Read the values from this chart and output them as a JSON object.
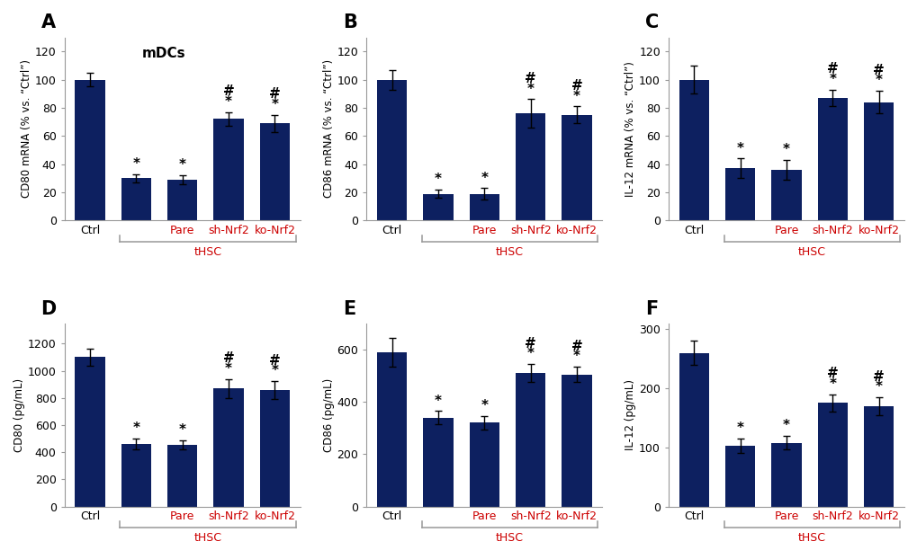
{
  "bar_color": "#0d2060",
  "panels": [
    {
      "label": "A",
      "ylabel": "CD80 mRNA (% vs. “Ctrl”)",
      "ylim": [
        0,
        130
      ],
      "yticks": [
        0,
        20,
        40,
        60,
        80,
        100,
        120
      ],
      "title": "mDCs",
      "values": [
        100,
        30,
        29,
        72,
        69
      ],
      "errors": [
        5,
        3,
        3,
        5,
        6
      ],
      "has_star": [
        false,
        true,
        true,
        true,
        true
      ],
      "has_hash": [
        false,
        false,
        false,
        true,
        true
      ],
      "row": 0,
      "col": 0
    },
    {
      "label": "B",
      "ylabel": "CD86 mRNA (% vs. “Ctrl”)",
      "ylim": [
        0,
        130
      ],
      "yticks": [
        0,
        20,
        40,
        60,
        80,
        100,
        120
      ],
      "title": "",
      "values": [
        100,
        19,
        19,
        76,
        75
      ],
      "errors": [
        7,
        3,
        4,
        10,
        6
      ],
      "has_star": [
        false,
        true,
        true,
        true,
        true
      ],
      "has_hash": [
        false,
        false,
        false,
        true,
        true
      ],
      "row": 0,
      "col": 1
    },
    {
      "label": "C",
      "ylabel": "IL-12 mRNA (% vs. “Ctrl”)",
      "ylim": [
        0,
        130
      ],
      "yticks": [
        0,
        20,
        40,
        60,
        80,
        100,
        120
      ],
      "title": "",
      "values": [
        100,
        37,
        36,
        87,
        84
      ],
      "errors": [
        10,
        7,
        7,
        6,
        8
      ],
      "has_star": [
        false,
        true,
        true,
        true,
        true
      ],
      "has_hash": [
        false,
        false,
        false,
        true,
        true
      ],
      "row": 0,
      "col": 2
    },
    {
      "label": "D",
      "ylabel": "CD80 (pg/mL)",
      "ylim": [
        0,
        1350
      ],
      "yticks": [
        0,
        200,
        400,
        600,
        800,
        1000,
        1200
      ],
      "title": "",
      "values": [
        1100,
        460,
        455,
        870,
        860
      ],
      "errors": [
        65,
        40,
        35,
        70,
        65
      ],
      "has_star": [
        false,
        true,
        true,
        true,
        true
      ],
      "has_hash": [
        false,
        false,
        false,
        true,
        true
      ],
      "row": 1,
      "col": 0
    },
    {
      "label": "E",
      "ylabel": "CD86 (pg/mL)",
      "ylim": [
        0,
        700
      ],
      "yticks": [
        0,
        200,
        400,
        600
      ],
      "title": "",
      "values": [
        590,
        340,
        320,
        510,
        505
      ],
      "errors": [
        55,
        25,
        25,
        35,
        30
      ],
      "has_star": [
        false,
        true,
        true,
        true,
        true
      ],
      "has_hash": [
        false,
        false,
        false,
        true,
        true
      ],
      "row": 1,
      "col": 1
    },
    {
      "label": "F",
      "ylabel": "IL-12 (pg/mL)",
      "ylim": [
        0,
        310
      ],
      "yticks": [
        0,
        100,
        200,
        300
      ],
      "title": "",
      "values": [
        260,
        103,
        108,
        175,
        170
      ],
      "errors": [
        20,
        12,
        12,
        15,
        15
      ],
      "has_star": [
        false,
        true,
        true,
        true,
        true
      ],
      "has_hash": [
        false,
        false,
        false,
        true,
        true
      ],
      "row": 1,
      "col": 2
    }
  ],
  "xticklabels": [
    "Ctrl",
    "",
    "Pare",
    "sh-Nrf2",
    "ko-Nrf2"
  ],
  "thsc_label": "tHSC",
  "thsc_color": "#cc0000",
  "spine_color": "#999999"
}
